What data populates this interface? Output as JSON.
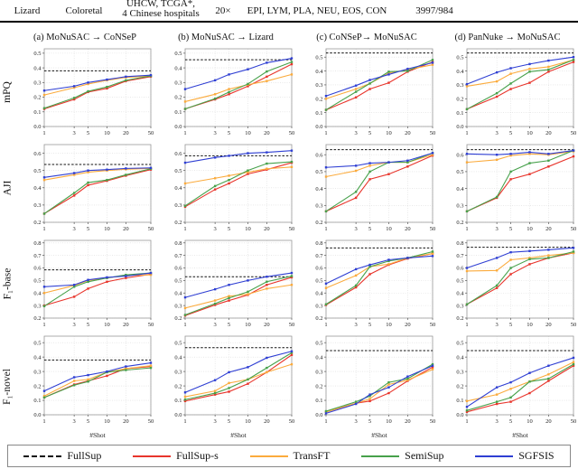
{
  "table_row": {
    "col1": "Lizard",
    "col2": "Coloretal",
    "col3_line1": "UHCW, TCGA*,",
    "col3_line2": "4 Chinese hospitals",
    "col4": "20×",
    "col5": "EPI, LYM, PLA, NEU, EOS, CON",
    "col6": "3997/984"
  },
  "figure": {
    "col_titles": [
      "(a) MoNuSAC → CoNSeP",
      "(b) MoNuSAC → Lizard",
      "(c) CoNSeP→ MoNuSAC",
      "(d) PanNuke → MoNuSAC"
    ],
    "row_labels": [
      "mPQ",
      "AJI",
      "F₁-base",
      "F₁-novel"
    ],
    "xlabel": "#Shot",
    "legend": [
      {
        "label": "FullSup",
        "color": "#111111",
        "dash": true
      },
      {
        "label": "FullSup-s",
        "color": "#e8352c"
      },
      {
        "label": "TransFT",
        "color": "#fbab3d"
      },
      {
        "label": "SemiSup",
        "color": "#47a14b"
      },
      {
        "label": "SGFSIS",
        "color": "#2f3fd3"
      }
    ]
  },
  "chart_data": [
    {
      "type": "line",
      "metric": "mPQ",
      "group": "(a) MoNuSAC → CoNSeP",
      "x": [
        1,
        3,
        5,
        10,
        20,
        50
      ],
      "ylim": [
        0,
        0.53
      ],
      "yticks": [
        0.0,
        0.1,
        0.2,
        0.3,
        0.4,
        0.5
      ],
      "fullsup": 0.38,
      "series": [
        {
          "name": "FullSup-s",
          "values": [
            0.12,
            0.185,
            0.235,
            0.26,
            0.31,
            0.34
          ]
        },
        {
          "name": "TransFT",
          "values": [
            0.215,
            0.265,
            0.29,
            0.315,
            0.335,
            0.345
          ]
        },
        {
          "name": "SemiSup",
          "values": [
            0.125,
            0.195,
            0.24,
            0.27,
            0.315,
            0.345
          ]
        },
        {
          "name": "SGFSIS",
          "values": [
            0.245,
            0.275,
            0.3,
            0.32,
            0.34,
            0.35
          ]
        }
      ]
    },
    {
      "type": "line",
      "metric": "mPQ",
      "group": "(b) MoNuSAC → Lizard",
      "x": [
        1,
        3,
        5,
        10,
        20,
        50
      ],
      "ylim": [
        0,
        0.53
      ],
      "yticks": [
        0.0,
        0.1,
        0.2,
        0.3,
        0.4,
        0.5
      ],
      "fullsup": 0.455,
      "series": [
        {
          "name": "FullSup-s",
          "values": [
            0.12,
            0.185,
            0.22,
            0.275,
            0.34,
            0.425
          ]
        },
        {
          "name": "TransFT",
          "values": [
            0.17,
            0.22,
            0.255,
            0.285,
            0.31,
            0.355
          ]
        },
        {
          "name": "SemiSup",
          "values": [
            0.12,
            0.19,
            0.235,
            0.29,
            0.375,
            0.44
          ]
        },
        {
          "name": "SGFSIS",
          "values": [
            0.255,
            0.315,
            0.355,
            0.39,
            0.435,
            0.465
          ]
        }
      ]
    },
    {
      "type": "line",
      "metric": "mPQ",
      "group": "(c) CoNSeP→ MoNuSAC",
      "x": [
        1,
        3,
        5,
        10,
        20,
        50
      ],
      "ylim": [
        0,
        0.56
      ],
      "yticks": [
        0.0,
        0.1,
        0.2,
        0.3,
        0.4,
        0.5
      ],
      "fullsup": 0.53,
      "series": [
        {
          "name": "FullSup-s",
          "values": [
            0.12,
            0.21,
            0.27,
            0.315,
            0.395,
            0.465
          ]
        },
        {
          "name": "TransFT",
          "values": [
            0.2,
            0.27,
            0.31,
            0.385,
            0.41,
            0.445
          ]
        },
        {
          "name": "SemiSup",
          "values": [
            0.12,
            0.25,
            0.31,
            0.395,
            0.4,
            0.48
          ]
        },
        {
          "name": "SGFSIS",
          "values": [
            0.22,
            0.295,
            0.335,
            0.375,
            0.415,
            0.46
          ]
        }
      ]
    },
    {
      "type": "line",
      "metric": "mPQ",
      "group": "(d) PanNuke → MoNuSAC",
      "x": [
        1,
        3,
        5,
        10,
        20,
        50
      ],
      "ylim": [
        0,
        0.56
      ],
      "yticks": [
        0.0,
        0.1,
        0.2,
        0.3,
        0.4,
        0.5
      ],
      "fullsup": 0.53,
      "series": [
        {
          "name": "FullSup-s",
          "values": [
            0.125,
            0.215,
            0.27,
            0.315,
            0.395,
            0.465
          ]
        },
        {
          "name": "TransFT",
          "values": [
            0.29,
            0.325,
            0.38,
            0.415,
            0.43,
            0.48
          ]
        },
        {
          "name": "SemiSup",
          "values": [
            0.125,
            0.24,
            0.31,
            0.395,
            0.41,
            0.48
          ]
        },
        {
          "name": "SGFSIS",
          "values": [
            0.305,
            0.39,
            0.42,
            0.45,
            0.475,
            0.5
          ]
        }
      ]
    },
    {
      "type": "line",
      "metric": "AJI",
      "group": "(a) MoNuSAC → CoNSeP",
      "x": [
        1,
        3,
        5,
        10,
        20,
        50
      ],
      "ylim": [
        0.2,
        0.65
      ],
      "yticks": [
        0.2,
        0.3,
        0.4,
        0.5,
        0.6
      ],
      "fullsup": 0.535,
      "series": [
        {
          "name": "FullSup-s",
          "values": [
            0.25,
            0.355,
            0.415,
            0.44,
            0.47,
            0.505
          ]
        },
        {
          "name": "TransFT",
          "values": [
            0.445,
            0.475,
            0.49,
            0.5,
            0.507,
            0.512
          ]
        },
        {
          "name": "SemiSup",
          "values": [
            0.25,
            0.37,
            0.43,
            0.445,
            0.475,
            0.51
          ]
        },
        {
          "name": "SGFSIS",
          "values": [
            0.46,
            0.485,
            0.5,
            0.505,
            0.512,
            0.515
          ]
        }
      ]
    },
    {
      "type": "line",
      "metric": "AJI",
      "group": "(b) MoNuSAC → Lizard",
      "x": [
        1,
        3,
        5,
        10,
        20,
        50
      ],
      "ylim": [
        0.2,
        0.65
      ],
      "yticks": [
        0.2,
        0.3,
        0.4,
        0.5,
        0.6
      ],
      "fullsup": 0.585,
      "series": [
        {
          "name": "FullSup-s",
          "values": [
            0.29,
            0.39,
            0.425,
            0.48,
            0.505,
            0.545
          ]
        },
        {
          "name": "TransFT",
          "values": [
            0.425,
            0.455,
            0.47,
            0.49,
            0.51,
            0.52
          ]
        },
        {
          "name": "SemiSup",
          "values": [
            0.295,
            0.41,
            0.445,
            0.5,
            0.54,
            0.55
          ]
        },
        {
          "name": "SGFSIS",
          "values": [
            0.545,
            0.575,
            0.585,
            0.6,
            0.605,
            0.615
          ]
        }
      ]
    },
    {
      "type": "line",
      "metric": "AJI",
      "group": "(c) CoNSeP→ MoNuSAC",
      "x": [
        1,
        3,
        5,
        10,
        20,
        50
      ],
      "ylim": [
        0.2,
        0.66
      ],
      "yticks": [
        0.2,
        0.3,
        0.4,
        0.5,
        0.6
      ],
      "fullsup": 0.63,
      "series": [
        {
          "name": "FullSup-s",
          "values": [
            0.265,
            0.345,
            0.455,
            0.485,
            0.53,
            0.595
          ]
        },
        {
          "name": "TransFT",
          "values": [
            0.47,
            0.505,
            0.535,
            0.555,
            0.555,
            0.6
          ]
        },
        {
          "name": "SemiSup",
          "values": [
            0.265,
            0.38,
            0.5,
            0.555,
            0.555,
            0.61
          ]
        },
        {
          "name": "SGFSIS",
          "values": [
            0.525,
            0.535,
            0.55,
            0.555,
            0.565,
            0.61
          ]
        }
      ]
    },
    {
      "type": "line",
      "metric": "AJI",
      "group": "(d) PanNuke → MoNuSAC",
      "x": [
        1,
        3,
        5,
        10,
        20,
        50
      ],
      "ylim": [
        0.2,
        0.66
      ],
      "yticks": [
        0.2,
        0.3,
        0.4,
        0.5,
        0.6
      ],
      "fullsup": 0.63,
      "series": [
        {
          "name": "FullSup-s",
          "values": [
            0.265,
            0.345,
            0.455,
            0.485,
            0.53,
            0.59
          ]
        },
        {
          "name": "TransFT",
          "values": [
            0.555,
            0.57,
            0.595,
            0.605,
            0.6,
            0.62
          ]
        },
        {
          "name": "SemiSup",
          "values": [
            0.265,
            0.35,
            0.5,
            0.55,
            0.565,
            0.625
          ]
        },
        {
          "name": "SGFSIS",
          "values": [
            0.605,
            0.6,
            0.605,
            0.615,
            0.605,
            0.625
          ]
        }
      ]
    },
    {
      "type": "line",
      "metric": "F₁-base",
      "group": "(a) MoNuSAC → CoNSeP",
      "x": [
        1,
        3,
        5,
        10,
        20,
        50
      ],
      "ylim": [
        0.2,
        0.82
      ],
      "yticks": [
        0.2,
        0.3,
        0.4,
        0.5,
        0.6,
        0.7,
        0.8
      ],
      "fullsup": 0.585,
      "series": [
        {
          "name": "FullSup-s",
          "values": [
            0.3,
            0.37,
            0.435,
            0.49,
            0.52,
            0.55
          ]
        },
        {
          "name": "TransFT",
          "values": [
            0.4,
            0.46,
            0.5,
            0.52,
            0.54,
            0.545
          ]
        },
        {
          "name": "SemiSup",
          "values": [
            0.295,
            0.45,
            0.49,
            0.52,
            0.545,
            0.56
          ]
        },
        {
          "name": "SGFSIS",
          "values": [
            0.45,
            0.465,
            0.505,
            0.525,
            0.535,
            0.56
          ]
        }
      ]
    },
    {
      "type": "line",
      "metric": "F₁-base",
      "group": "(b) MoNuSAC → Lizard",
      "x": [
        1,
        3,
        5,
        10,
        20,
        50
      ],
      "ylim": [
        0.2,
        0.82
      ],
      "yticks": [
        0.2,
        0.3,
        0.4,
        0.5,
        0.6,
        0.7,
        0.8
      ],
      "fullsup": 0.53,
      "series": [
        {
          "name": "FullSup-s",
          "values": [
            0.22,
            0.305,
            0.34,
            0.385,
            0.465,
            0.525
          ]
        },
        {
          "name": "TransFT",
          "values": [
            0.28,
            0.34,
            0.375,
            0.39,
            0.435,
            0.465
          ]
        },
        {
          "name": "SemiSup",
          "values": [
            0.225,
            0.315,
            0.36,
            0.41,
            0.49,
            0.535
          ]
        },
        {
          "name": "SGFSIS",
          "values": [
            0.365,
            0.43,
            0.465,
            0.5,
            0.53,
            0.56
          ]
        }
      ]
    },
    {
      "type": "line",
      "metric": "F₁-base",
      "group": "(c) CoNSeP→ MoNuSAC",
      "x": [
        1,
        3,
        5,
        10,
        20,
        50
      ],
      "ylim": [
        0.2,
        0.82
      ],
      "yticks": [
        0.2,
        0.3,
        0.4,
        0.5,
        0.6,
        0.7,
        0.8
      ],
      "fullsup": 0.76,
      "series": [
        {
          "name": "FullSup-s",
          "values": [
            0.305,
            0.445,
            0.55,
            0.625,
            0.675,
            0.715
          ]
        },
        {
          "name": "TransFT",
          "values": [
            0.44,
            0.54,
            0.61,
            0.63,
            0.68,
            0.715
          ]
        },
        {
          "name": "SemiSup",
          "values": [
            0.31,
            0.46,
            0.61,
            0.655,
            0.68,
            0.73
          ]
        },
        {
          "name": "SGFSIS",
          "values": [
            0.475,
            0.59,
            0.625,
            0.665,
            0.68,
            0.695
          ]
        }
      ]
    },
    {
      "type": "line",
      "metric": "F₁-base",
      "group": "(d) PanNuke → MoNuSAC",
      "x": [
        1,
        3,
        5,
        10,
        20,
        50
      ],
      "ylim": [
        0.2,
        0.82
      ],
      "yticks": [
        0.2,
        0.3,
        0.4,
        0.5,
        0.6,
        0.7,
        0.8
      ],
      "fullsup": 0.765,
      "series": [
        {
          "name": "FullSup-s",
          "values": [
            0.31,
            0.44,
            0.55,
            0.63,
            0.68,
            0.72
          ]
        },
        {
          "name": "TransFT",
          "values": [
            0.575,
            0.58,
            0.665,
            0.68,
            0.7,
            0.72
          ]
        },
        {
          "name": "SemiSup",
          "values": [
            0.31,
            0.46,
            0.6,
            0.67,
            0.68,
            0.73
          ]
        },
        {
          "name": "SGFSIS",
          "values": [
            0.6,
            0.68,
            0.725,
            0.735,
            0.745,
            0.76
          ]
        }
      ]
    },
    {
      "type": "line",
      "metric": "F₁-novel",
      "group": "(a) MoNuSAC → CoNSeP",
      "x": [
        1,
        3,
        5,
        10,
        20,
        50
      ],
      "ylim": [
        0,
        0.545
      ],
      "yticks": [
        0.0,
        0.1,
        0.2,
        0.3,
        0.4,
        0.5
      ],
      "fullsup": 0.38,
      "xlabel": "#Shot",
      "series": [
        {
          "name": "FullSup-s",
          "values": [
            0.12,
            0.21,
            0.235,
            0.27,
            0.32,
            0.335
          ]
        },
        {
          "name": "TransFT",
          "values": [
            0.13,
            0.235,
            0.245,
            0.295,
            0.32,
            0.34
          ]
        },
        {
          "name": "SemiSup",
          "values": [
            0.12,
            0.205,
            0.23,
            0.295,
            0.31,
            0.325
          ]
        },
        {
          "name": "SGFSIS",
          "values": [
            0.165,
            0.26,
            0.275,
            0.3,
            0.335,
            0.36
          ]
        }
      ]
    },
    {
      "type": "line",
      "metric": "F₁-novel",
      "group": "(b) MoNuSAC → Lizard",
      "x": [
        1,
        3,
        5,
        10,
        20,
        50
      ],
      "ylim": [
        0,
        0.545
      ],
      "yticks": [
        0.0,
        0.1,
        0.2,
        0.3,
        0.4,
        0.5
      ],
      "fullsup": 0.465,
      "xlabel": "#Shot",
      "series": [
        {
          "name": "FullSup-s",
          "values": [
            0.095,
            0.14,
            0.16,
            0.215,
            0.295,
            0.415
          ]
        },
        {
          "name": "TransFT",
          "values": [
            0.125,
            0.165,
            0.22,
            0.245,
            0.295,
            0.35
          ]
        },
        {
          "name": "SemiSup",
          "values": [
            0.105,
            0.15,
            0.185,
            0.245,
            0.325,
            0.43
          ]
        },
        {
          "name": "SGFSIS",
          "values": [
            0.155,
            0.24,
            0.295,
            0.33,
            0.395,
            0.44
          ]
        }
      ]
    },
    {
      "type": "line",
      "metric": "F₁-novel",
      "group": "(c) CoNSeP→ MoNuSAC",
      "x": [
        1,
        3,
        5,
        10,
        20,
        50
      ],
      "ylim": [
        0,
        0.545
      ],
      "yticks": [
        0.0,
        0.1,
        0.2,
        0.3,
        0.4,
        0.5
      ],
      "fullsup": 0.445,
      "xlabel": "#Shot",
      "series": [
        {
          "name": "FullSup-s",
          "values": [
            0.02,
            0.08,
            0.095,
            0.15,
            0.235,
            0.33
          ]
        },
        {
          "name": "TransFT",
          "values": [
            0.02,
            0.08,
            0.11,
            0.21,
            0.24,
            0.315
          ]
        },
        {
          "name": "SemiSup",
          "values": [
            0.025,
            0.09,
            0.13,
            0.225,
            0.25,
            0.35
          ]
        },
        {
          "name": "SGFSIS",
          "values": [
            0.01,
            0.075,
            0.14,
            0.19,
            0.265,
            0.34
          ]
        }
      ]
    },
    {
      "type": "line",
      "metric": "F₁-novel",
      "group": "(d) PanNuke → MoNuSAC",
      "x": [
        1,
        3,
        5,
        10,
        20,
        50
      ],
      "ylim": [
        0,
        0.545
      ],
      "yticks": [
        0.0,
        0.1,
        0.2,
        0.3,
        0.4,
        0.5
      ],
      "fullsup": 0.445,
      "xlabel": "#Shot",
      "series": [
        {
          "name": "FullSup-s",
          "values": [
            0.02,
            0.075,
            0.09,
            0.15,
            0.235,
            0.34
          ]
        },
        {
          "name": "TransFT",
          "values": [
            0.095,
            0.14,
            0.18,
            0.23,
            0.28,
            0.365
          ]
        },
        {
          "name": "SemiSup",
          "values": [
            0.03,
            0.09,
            0.12,
            0.23,
            0.25,
            0.35
          ]
        },
        {
          "name": "SGFSIS",
          "values": [
            0.055,
            0.19,
            0.225,
            0.29,
            0.34,
            0.395
          ]
        }
      ]
    }
  ]
}
